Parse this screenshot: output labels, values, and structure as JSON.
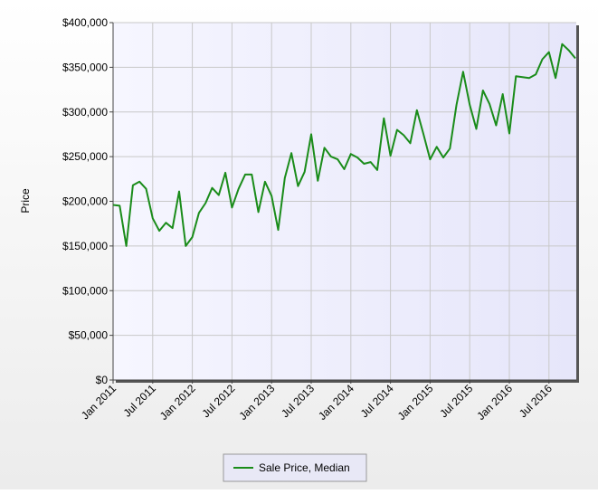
{
  "chart_data": {
    "type": "line",
    "y_label": "Price",
    "categories": [
      "Jan 2011",
      null,
      null,
      null,
      null,
      null,
      "Jul 2011",
      null,
      null,
      null,
      null,
      null,
      "Jan 2012",
      null,
      null,
      null,
      null,
      null,
      "Jul 2012",
      null,
      null,
      null,
      null,
      null,
      "Jan 2013",
      null,
      null,
      null,
      null,
      null,
      "Jul 2013",
      null,
      null,
      null,
      null,
      null,
      "Jan 2014",
      null,
      null,
      null,
      null,
      null,
      "Jul 2014",
      null,
      null,
      null,
      null,
      null,
      "Jan 2015",
      null,
      null,
      null,
      null,
      null,
      "Jul 2015",
      null,
      null,
      null,
      null,
      null,
      "Jan 2016",
      null,
      null,
      null,
      null,
      null,
      "Jul 2016",
      null,
      null,
      null,
      null
    ],
    "series": [
      {
        "name": "Sale Price, Median",
        "color": "#1a8c1a",
        "values": [
          196000,
          195000,
          150000,
          218000,
          222000,
          214000,
          181000,
          167000,
          176000,
          170000,
          211000,
          150000,
          160000,
          187000,
          198000,
          215000,
          207000,
          232000,
          193000,
          214000,
          230000,
          230000,
          188000,
          222000,
          206000,
          168000,
          226000,
          254000,
          217000,
          233000,
          275000,
          223000,
          260000,
          250000,
          247000,
          236000,
          253000,
          249000,
          242000,
          244000,
          235000,
          293000,
          251000,
          280000,
          274000,
          265000,
          302000,
          275000,
          247000,
          261000,
          249000,
          259000,
          308000,
          345000,
          308000,
          281000,
          324000,
          309000,
          285000,
          320000,
          276000,
          340000,
          339000,
          338000,
          342000,
          359000,
          367000,
          338000,
          376000,
          369000,
          360000
        ]
      }
    ],
    "ylim": [
      0,
      400000
    ],
    "yticks": [
      {
        "value": 0,
        "label": "$0"
      },
      {
        "value": 50000,
        "label": "$50,000"
      },
      {
        "value": 100000,
        "label": "$100,000"
      },
      {
        "value": 150000,
        "label": "$150,000"
      },
      {
        "value": 200000,
        "label": "$200,000"
      },
      {
        "value": 250000,
        "label": "$250,000"
      },
      {
        "value": 300000,
        "label": "$300,000"
      },
      {
        "value": 350000,
        "label": "$350,000"
      },
      {
        "value": 400000,
        "label": "$400,000"
      }
    ],
    "grid": true
  }
}
